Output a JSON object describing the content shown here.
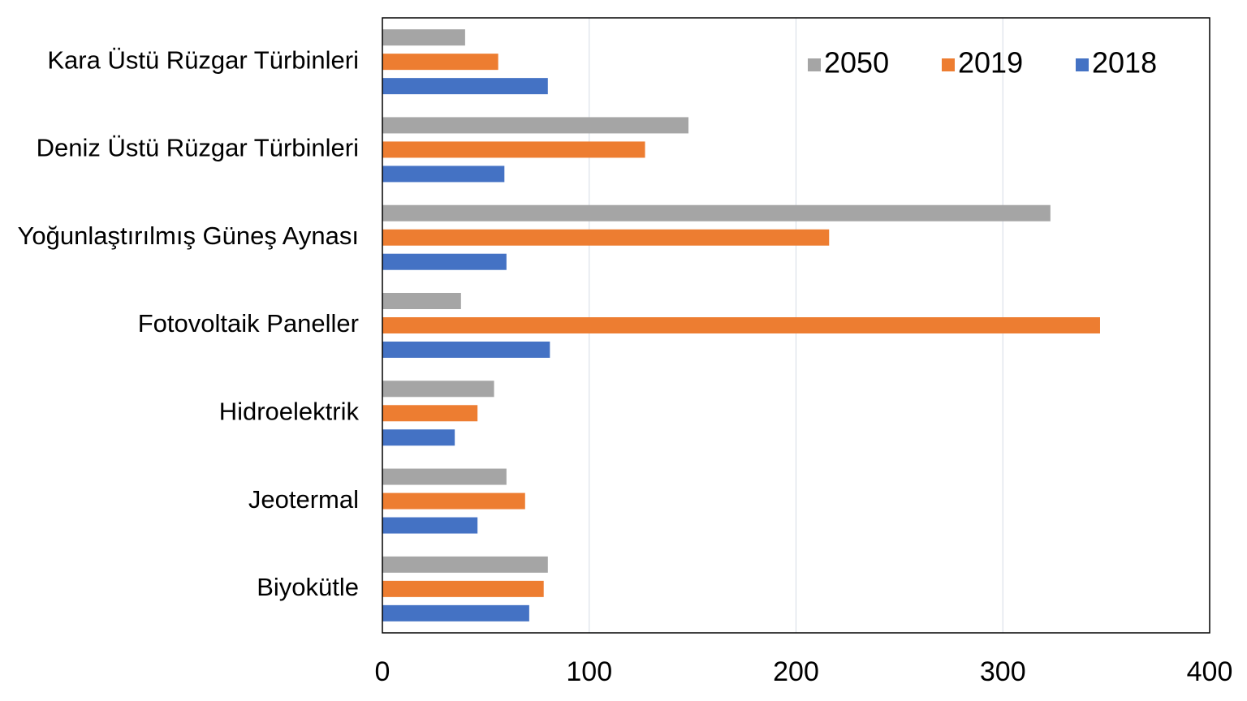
{
  "chart_data": {
    "type": "hbar",
    "categories": [
      "Kara Üstü Rüzgar Türbinleri",
      "Deniz Üstü Rüzgar Türbinleri",
      "Yoğunlaştırılmış Güneş Aynası",
      "Fotovoltaik Paneller",
      "Hidroelektrik",
      "Jeotermal",
      "Biyokütle"
    ],
    "series": [
      {
        "name": "2050",
        "color": "#a5a5a5",
        "values": [
          40,
          148,
          323,
          38,
          54,
          60,
          80
        ]
      },
      {
        "name": "2019",
        "color": "#ed7d31",
        "values": [
          56,
          127,
          216,
          347,
          46,
          69,
          78
        ]
      },
      {
        "name": "2018",
        "color": "#4472c4",
        "values": [
          80,
          59,
          60,
          81,
          35,
          46,
          71
        ]
      }
    ],
    "xlim": [
      0,
      400
    ],
    "xticks": [
      0,
      100,
      200,
      300,
      400
    ],
    "grid": true,
    "legend": "top-right"
  }
}
